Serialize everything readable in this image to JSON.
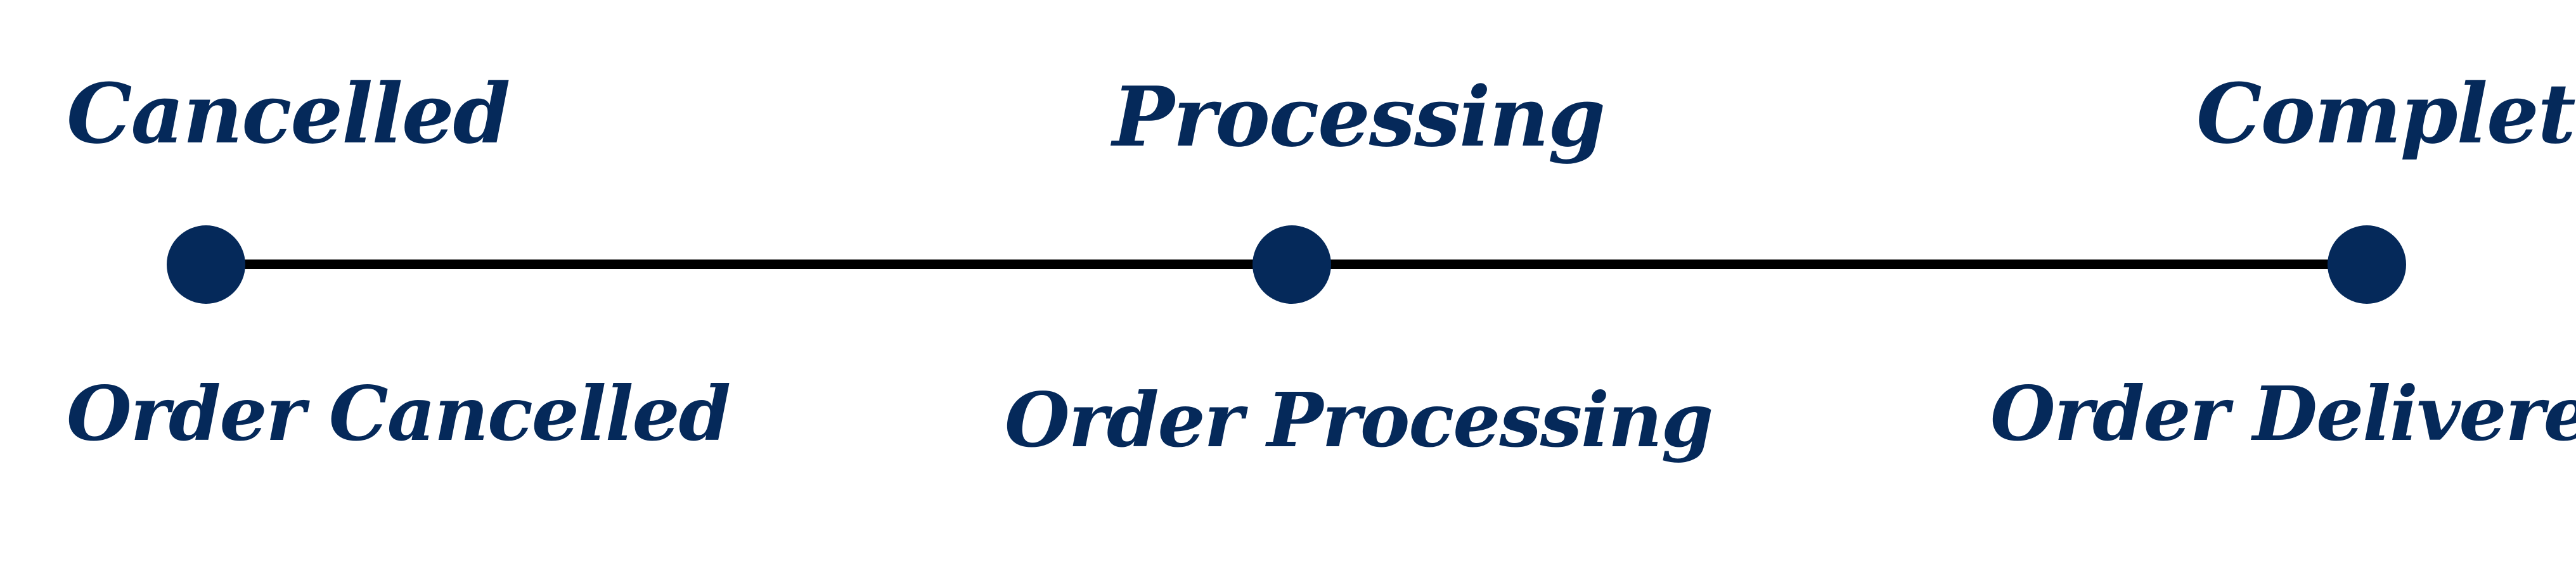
{
  "theme": {
    "accent": "#05295a",
    "line": "#000000",
    "background": "#ffffff"
  },
  "steps": [
    {
      "status": "Cancelled",
      "description": "Order Cancelled"
    },
    {
      "status": "Processing",
      "description": "Order Processing"
    },
    {
      "status": "Completed",
      "description": "Order Delivered"
    }
  ]
}
